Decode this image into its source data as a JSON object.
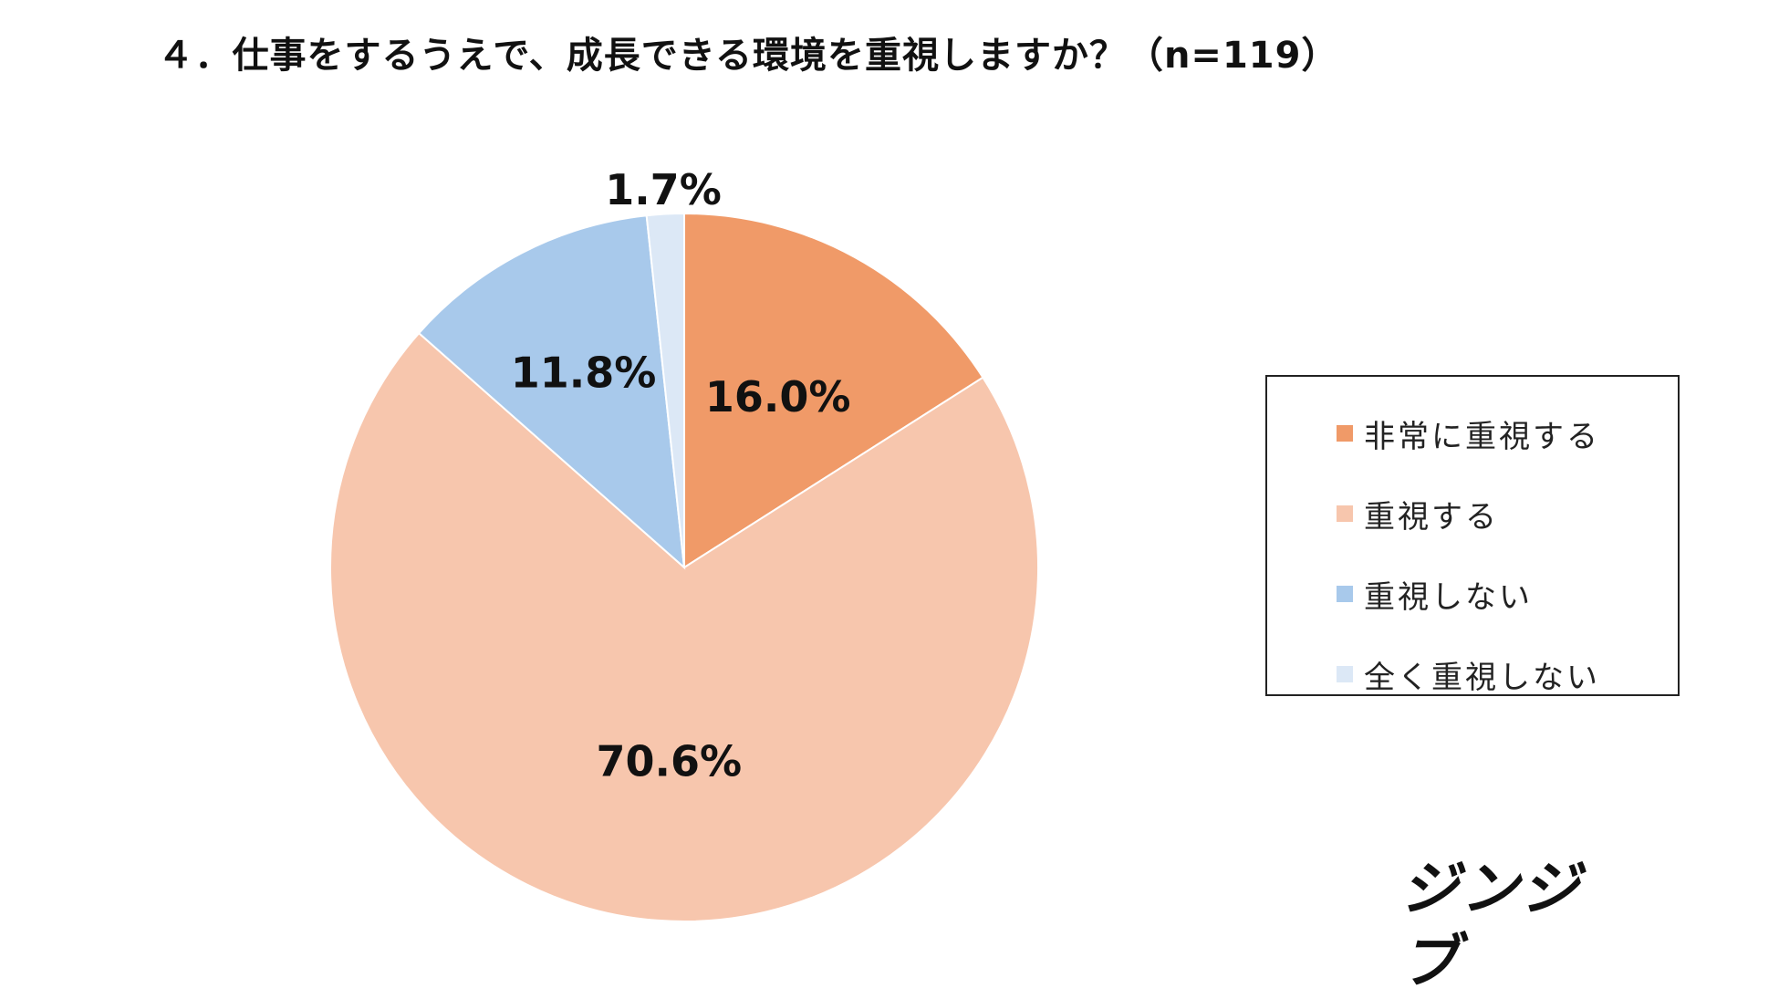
{
  "chart_data": {
    "type": "pie",
    "title": "４．仕事をするうえで、成長できる環境を重視しますか？（n=119）",
    "categories": [
      "非常に重視する",
      "重視する",
      "重視しない",
      "全く重視しない"
    ],
    "values": [
      16.0,
      70.6,
      11.8,
      1.7
    ],
    "value_labels": [
      "16.0%",
      "70.6%",
      "11.8%",
      "1.7%"
    ],
    "colors": [
      "#F09A68",
      "#F7C6AD",
      "#A8C9EB",
      "#DCE8F6"
    ],
    "start_angle_deg": 0,
    "direction": "clockwise",
    "legend": {
      "position": "right",
      "items": [
        {
          "label": "非常に重視する",
          "color": "#F09A68"
        },
        {
          "label": "重視する",
          "color": "#F7C6AD"
        },
        {
          "label": "重視しない",
          "color": "#A8C9EB"
        },
        {
          "label": "全く重視しない",
          "color": "#DCE8F6"
        }
      ]
    }
  },
  "logo": {
    "text": "ジンジブ"
  }
}
